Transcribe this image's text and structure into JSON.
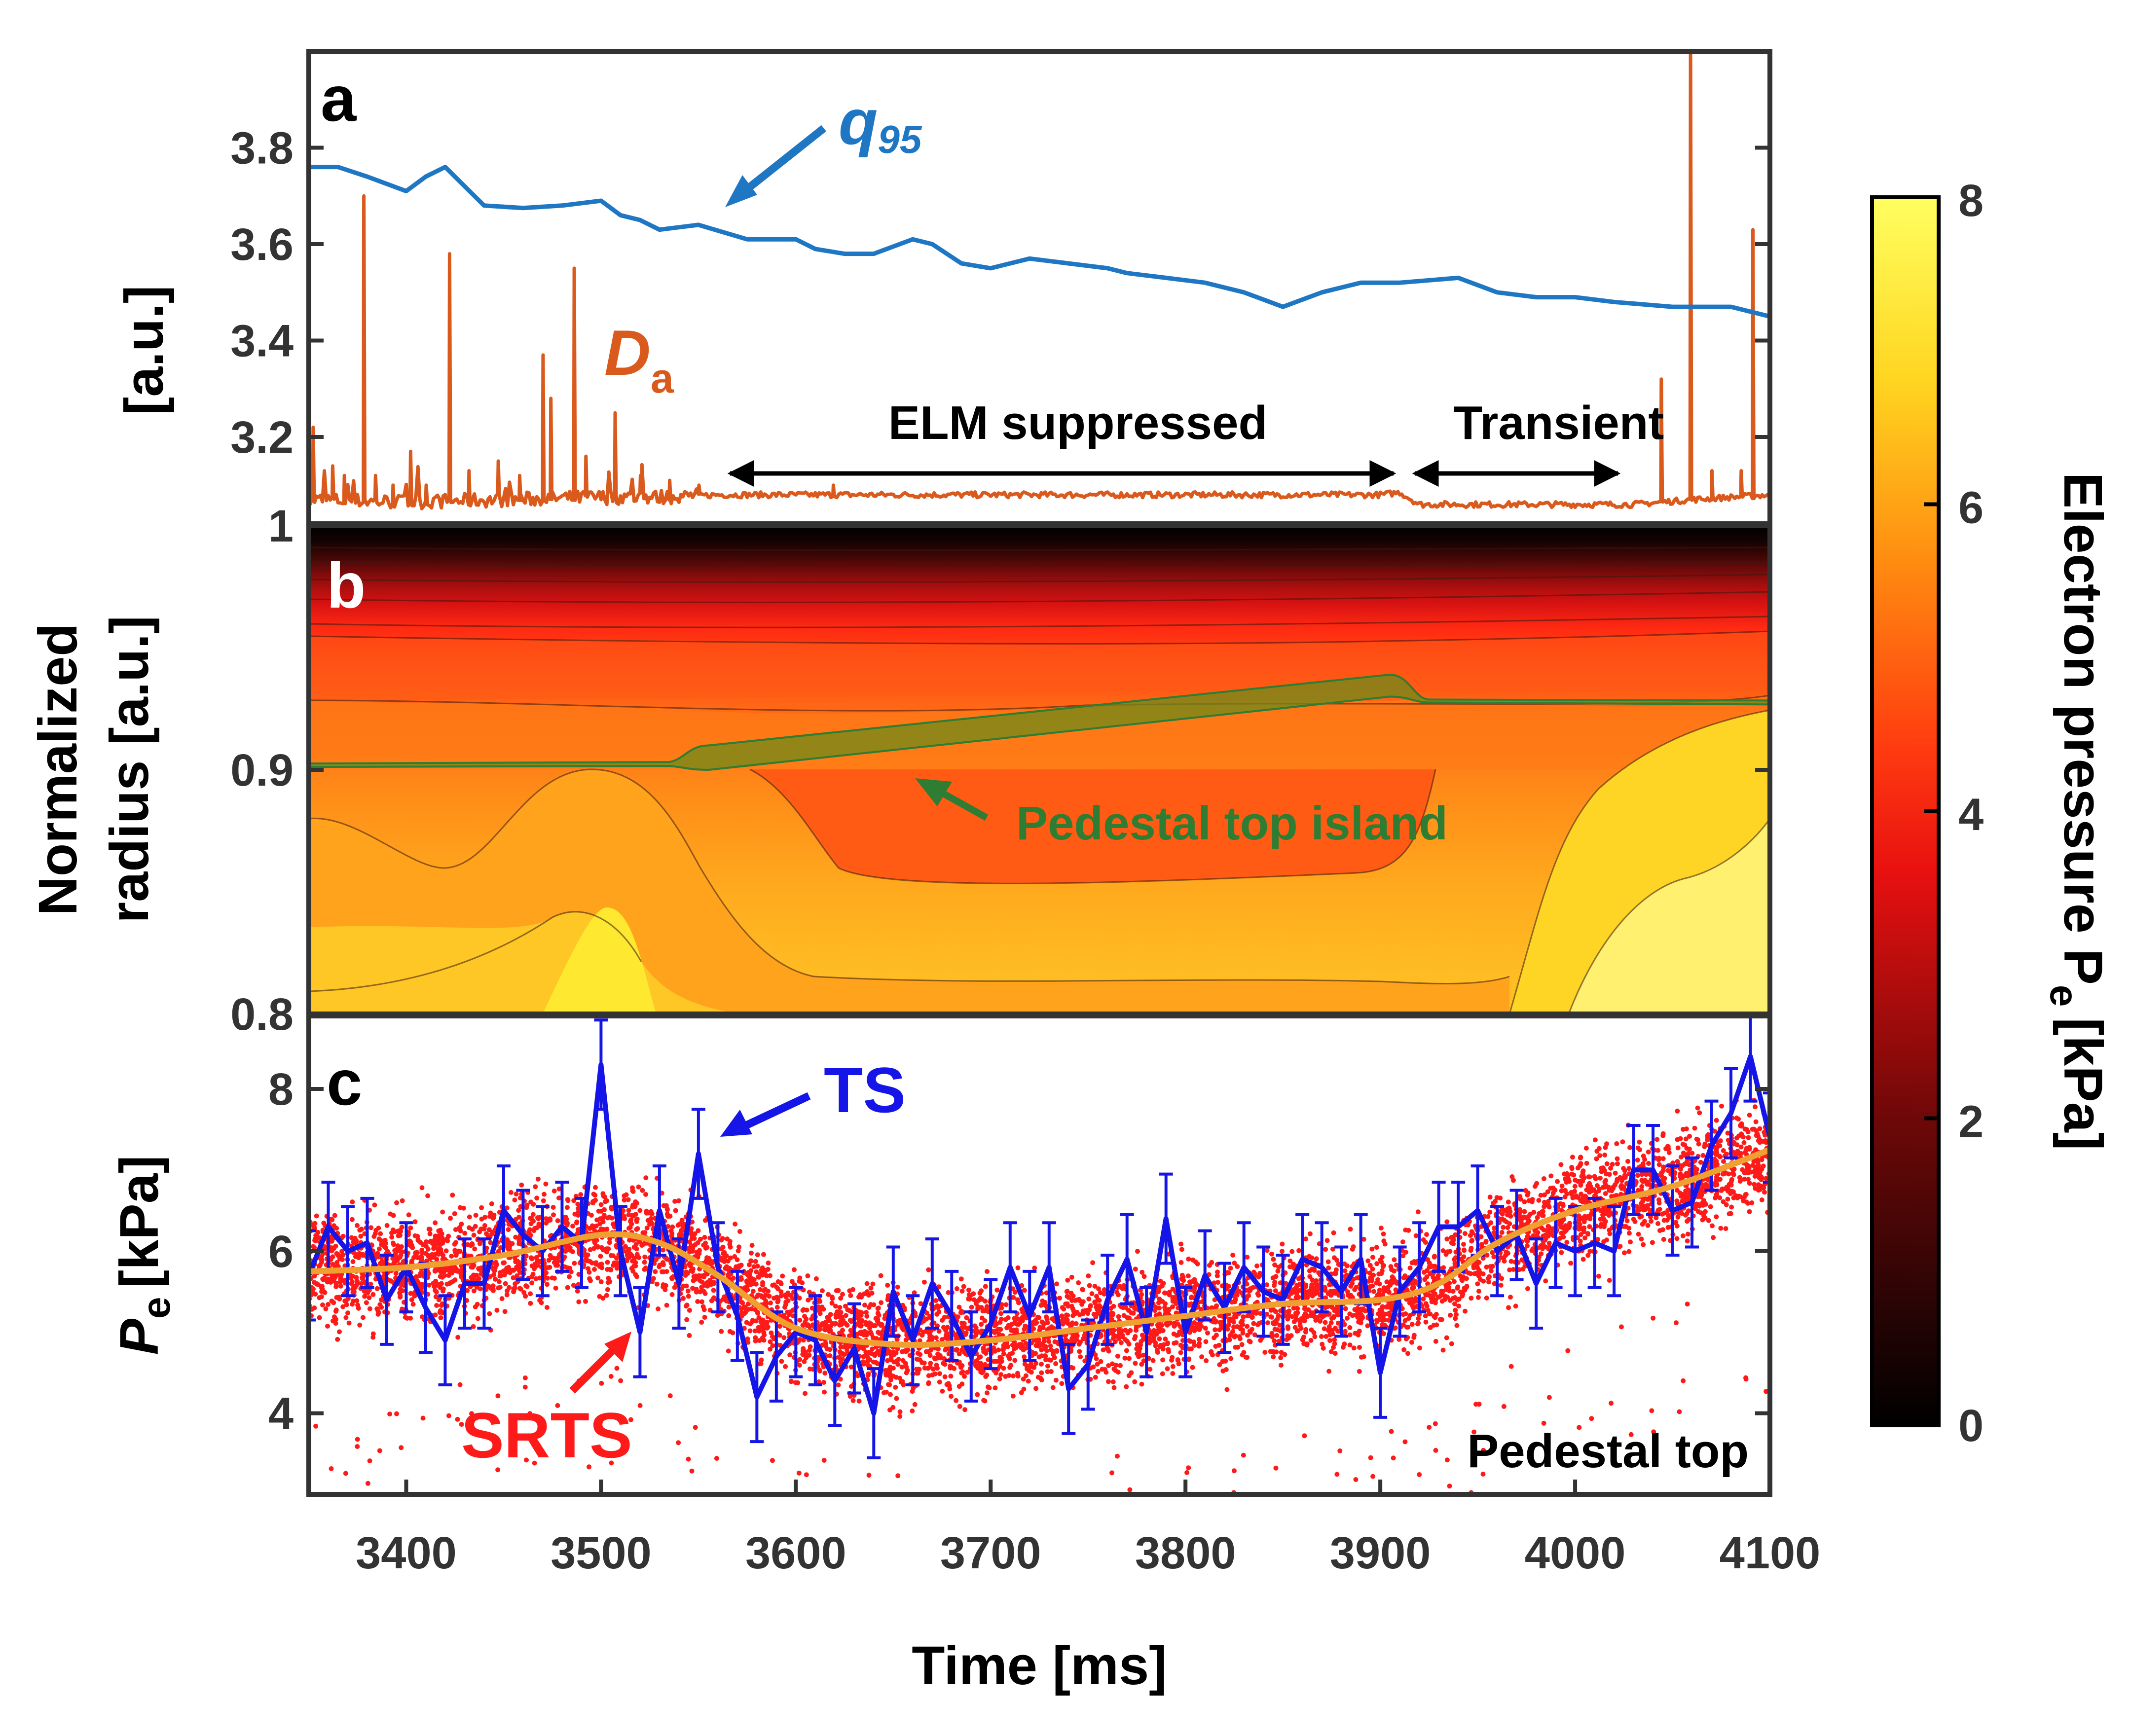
{
  "colors": {
    "q95": "#1f77c4",
    "da": "#d95a1c",
    "ts": "#1515e8",
    "srts": "#ff1a1a",
    "fit": "#f0a030",
    "island": "#2e7d32",
    "frame": "#333333"
  },
  "chart_data": [
    {
      "id": "a",
      "type": "line",
      "panel_label": "a",
      "ylabel": "[a.u.]",
      "xlim": [
        3350,
        4100
      ],
      "ylim": [
        3.02,
        4.0
      ],
      "yticks": [
        "3.2",
        "3.4",
        "3.6",
        "3.8"
      ],
      "series": [
        {
          "name": "q95",
          "color": "#1f77c4",
          "x": [
            3350,
            3365,
            3380,
            3400,
            3410,
            3420,
            3425,
            3440,
            3460,
            3480,
            3500,
            3510,
            3520,
            3530,
            3550,
            3575,
            3600,
            3610,
            3625,
            3640,
            3660,
            3670,
            3685,
            3700,
            3720,
            3740,
            3760,
            3770,
            3790,
            3810,
            3830,
            3850,
            3870,
            3890,
            3910,
            3940,
            3960,
            3980,
            4000,
            4020,
            4050,
            4080,
            4100
          ],
          "y": [
            3.76,
            3.76,
            3.74,
            3.71,
            3.74,
            3.76,
            3.74,
            3.68,
            3.675,
            3.68,
            3.69,
            3.66,
            3.65,
            3.63,
            3.64,
            3.61,
            3.61,
            3.59,
            3.58,
            3.58,
            3.61,
            3.6,
            3.56,
            3.55,
            3.57,
            3.56,
            3.55,
            3.54,
            3.53,
            3.52,
            3.5,
            3.47,
            3.5,
            3.52,
            3.52,
            3.53,
            3.5,
            3.49,
            3.49,
            3.48,
            3.47,
            3.47,
            3.45
          ]
        },
        {
          "name": "Da",
          "color": "#d95a1c",
          "baseline": [
            [
              3350,
              3.07
            ],
            [
              3400,
              3.065
            ],
            [
              3450,
              3.07
            ],
            [
              3500,
              3.075
            ],
            [
              3530,
              3.075
            ],
            [
              3560,
              3.08
            ],
            [
              3700,
              3.08
            ],
            [
              3800,
              3.08
            ],
            [
              3900,
              3.08
            ],
            [
              3910,
              3.085
            ],
            [
              3920,
              3.06
            ],
            [
              4030,
              3.06
            ],
            [
              4060,
              3.07
            ],
            [
              4100,
              3.08
            ]
          ],
          "spikes": [
            {
              "t": 3352,
              "v": 3.22
            },
            {
              "t": 3362,
              "v": 3.14
            },
            {
              "t": 3368,
              "v": 3.12
            },
            {
              "t": 3378,
              "v": 3.7
            },
            {
              "t": 3384,
              "v": 3.12
            },
            {
              "t": 3393,
              "v": 3.1
            },
            {
              "t": 3402,
              "v": 3.17
            },
            {
              "t": 3410,
              "v": 3.1
            },
            {
              "t": 3422,
              "v": 3.58
            },
            {
              "t": 3432,
              "v": 3.13
            },
            {
              "t": 3447,
              "v": 3.15
            },
            {
              "t": 3458,
              "v": 3.12
            },
            {
              "t": 3470,
              "v": 3.37
            },
            {
              "t": 3474,
              "v": 3.28
            },
            {
              "t": 3486,
              "v": 3.55
            },
            {
              "t": 3492,
              "v": 3.16
            },
            {
              "t": 3507,
              "v": 3.25
            },
            {
              "t": 3520,
              "v": 3.12
            },
            {
              "t": 3535,
              "v": 3.11
            },
            {
              "t": 3550,
              "v": 3.1
            },
            {
              "t": 3619,
              "v": 3.1
            },
            {
              "t": 4044,
              "v": 3.32
            },
            {
              "t": 4059,
              "v": 4.0
            },
            {
              "t": 4070,
              "v": 3.13
            },
            {
              "t": 4085,
              "v": 3.13
            },
            {
              "t": 4091,
              "v": 3.63
            }
          ]
        }
      ],
      "annotations": [
        {
          "text": "q",
          "sub": "95",
          "color": "#1f77c4"
        },
        {
          "text": "D",
          "sub": "a",
          "color": "#d95a1c"
        },
        {
          "text": "ELM suppressed",
          "range": [
            3570,
            3910
          ]
        },
        {
          "text": "Transient",
          "range": [
            3925,
            4025
          ]
        }
      ]
    },
    {
      "id": "b",
      "type": "heatmap",
      "panel_label": "b",
      "ylabel_lines": [
        "Normalized",
        "radius [a.u.]"
      ],
      "xlim": [
        3350,
        4100
      ],
      "ylim": [
        0.8,
        1.0
      ],
      "yticks": [
        "0.8",
        "0.9",
        "1"
      ],
      "colorscale_range": [
        0,
        8
      ],
      "annotation": "Pedestal top island",
      "island": {
        "start": 3545,
        "end": 3915,
        "lower_start": 0.9,
        "lower_end": 0.93,
        "upper_start": 0.91,
        "upper_end": 0.939
      }
    },
    {
      "id": "c",
      "type": "scatter",
      "panel_label": "c",
      "ylabel": "P",
      "ylabel_sub": "e",
      "ylabel_unit": "[kPa]",
      "xlabel": "Time [ms]",
      "xlim": [
        3350,
        4100
      ],
      "ylim": [
        3.0,
        8.9
      ],
      "xticks": [
        "3400",
        "3500",
        "3600",
        "3700",
        "3800",
        "3900",
        "4000",
        "4100"
      ],
      "yticks": [
        "4",
        "6",
        "8"
      ],
      "corner_text": "Pedestal top",
      "series": [
        {
          "name": "TS",
          "color": "#1515e8",
          "x": [
            3350,
            3360,
            3370,
            3380,
            3390,
            3400,
            3410,
            3420,
            3430,
            3440,
            3450,
            3460,
            3470,
            3480,
            3490,
            3500,
            3510,
            3520,
            3530,
            3540,
            3550,
            3560,
            3570,
            3580,
            3590,
            3600,
            3610,
            3620,
            3630,
            3640,
            3650,
            3660,
            3670,
            3680,
            3690,
            3700,
            3710,
            3720,
            3730,
            3740,
            3750,
            3760,
            3770,
            3780,
            3790,
            3800,
            3810,
            3820,
            3830,
            3840,
            3850,
            3860,
            3870,
            3880,
            3890,
            3900,
            3910,
            3920,
            3930,
            3940,
            3950,
            3960,
            3970,
            3980,
            3990,
            4000,
            4010,
            4020,
            4030,
            4040,
            4050,
            4060,
            4070,
            4080,
            4090,
            4100
          ],
          "y": [
            5.7,
            6.3,
            6.0,
            6.1,
            5.4,
            5.8,
            5.3,
            4.9,
            5.6,
            5.6,
            6.5,
            6.2,
            6.0,
            6.3,
            6.1,
            8.3,
            6.0,
            5.0,
            6.5,
            5.6,
            7.2,
            5.8,
            5.2,
            4.2,
            4.7,
            5.0,
            4.9,
            4.4,
            4.8,
            4.0,
            5.5,
            4.9,
            5.6,
            5.2,
            4.7,
            5.1,
            5.8,
            5.2,
            5.8,
            4.3,
            4.6,
            5.4,
            5.9,
            5.0,
            6.4,
            5.0,
            5.7,
            5.3,
            5.8,
            5.5,
            5.4,
            5.9,
            5.8,
            5.5,
            5.9,
            4.5,
            5.5,
            5.8,
            6.3,
            6.3,
            6.5,
            6.0,
            6.2,
            5.6,
            6.1,
            6.0,
            6.1,
            6.0,
            7.0,
            7.0,
            6.5,
            6.6,
            7.3,
            7.7,
            8.4,
            7.4
          ],
          "err": 0.55
        },
        {
          "name": "SRTS",
          "color": "#ff1a1a",
          "description": "dense fast profile reflectometry points following the fit with ~0.6 kPa scatter"
        },
        {
          "name": "fit",
          "color": "#f0a030",
          "x": [
            3350,
            3400,
            3450,
            3500,
            3530,
            3560,
            3600,
            3650,
            3700,
            3750,
            3800,
            3850,
            3900,
            3930,
            3960,
            4000,
            4050,
            4100
          ],
          "y": [
            5.75,
            5.8,
            5.95,
            6.2,
            6.1,
            5.7,
            5.05,
            4.85,
            4.9,
            5.05,
            5.2,
            5.35,
            5.4,
            5.6,
            6.1,
            6.5,
            6.8,
            7.25
          ]
        }
      ],
      "annotations": [
        {
          "text": "TS",
          "color": "#1515e8"
        },
        {
          "text": "SRTS",
          "color": "#ff1a1a"
        }
      ]
    },
    {
      "id": "colorbar",
      "type": "colorbar",
      "label": "Electron pressure P",
      "label_sub": "e",
      "label_unit": "[kPa]",
      "range": [
        0,
        8
      ],
      "ticks": [
        "0",
        "2",
        "4",
        "6",
        "8"
      ]
    }
  ]
}
